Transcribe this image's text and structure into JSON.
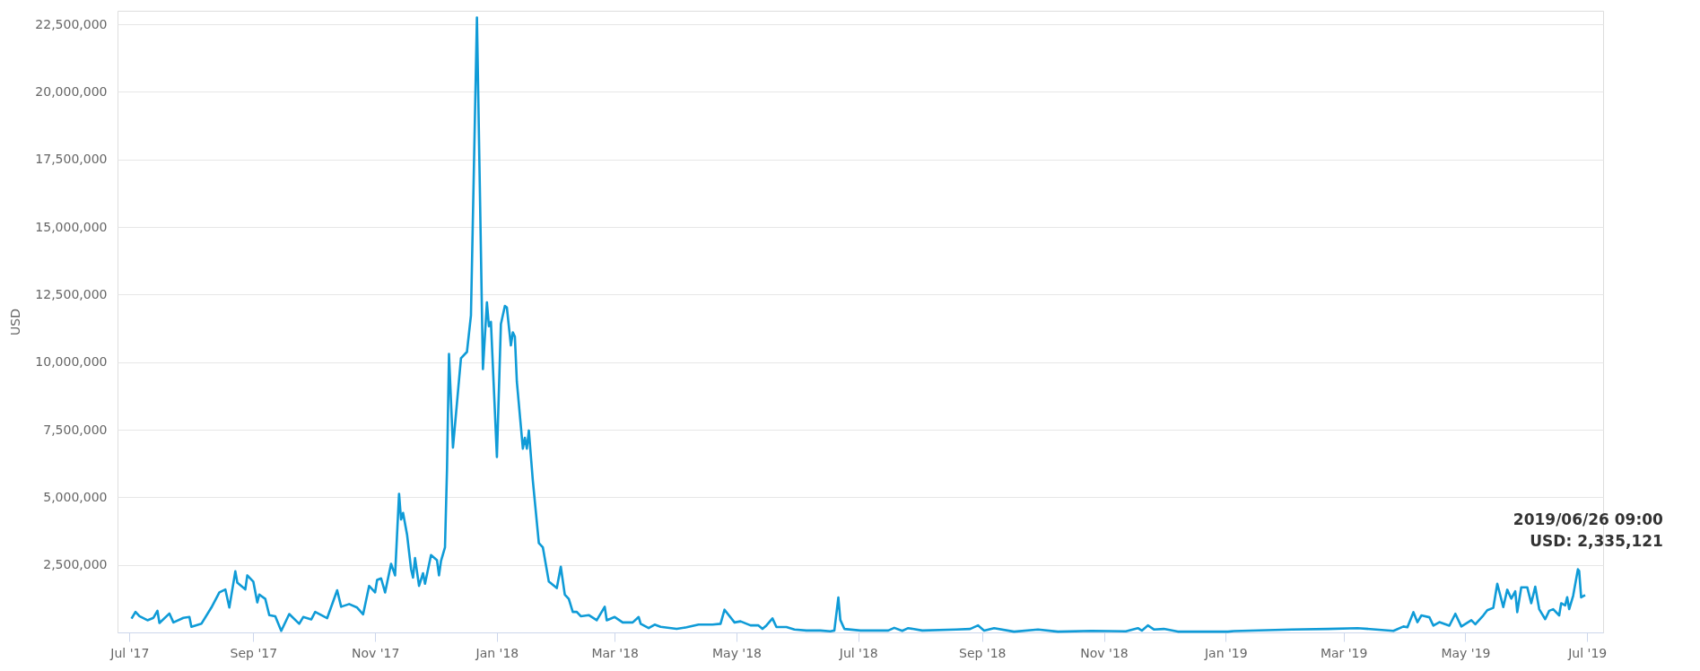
{
  "chart_data": {
    "type": "line",
    "ylabel": "USD",
    "grid": "y",
    "marker": "none",
    "line_style": "solid",
    "xlim": [
      "2017-06-25",
      "2019-07-09"
    ],
    "xticks": [
      {
        "value": "2017-07-01",
        "label": "Jul '17"
      },
      {
        "value": "2017-09-01",
        "label": "Sep '17"
      },
      {
        "value": "2017-11-01",
        "label": "Nov '17"
      },
      {
        "value": "2018-01-01",
        "label": "Jan '18"
      },
      {
        "value": "2018-03-01",
        "label": "Mar '18"
      },
      {
        "value": "2018-05-01",
        "label": "May '18"
      },
      {
        "value": "2018-07-01",
        "label": "Jul '18"
      },
      {
        "value": "2018-09-01",
        "label": "Sep '18"
      },
      {
        "value": "2018-11-01",
        "label": "Nov '18"
      },
      {
        "value": "2019-01-01",
        "label": "Jan '19"
      },
      {
        "value": "2019-03-01",
        "label": "Mar '19"
      },
      {
        "value": "2019-05-01",
        "label": "May '19"
      },
      {
        "value": "2019-07-01",
        "label": "Jul '19"
      }
    ],
    "ylim": [
      0,
      23000000
    ],
    "yticks": [
      {
        "value": 2500000,
        "label": "2,500,000"
      },
      {
        "value": 5000000,
        "label": "5,000,000"
      },
      {
        "value": 7500000,
        "label": "7,500,000"
      },
      {
        "value": 10000000,
        "label": "10,000,000"
      },
      {
        "value": 12500000,
        "label": "12,500,000"
      },
      {
        "value": 15000000,
        "label": "15,000,000"
      },
      {
        "value": 17500000,
        "label": "17,500,000"
      },
      {
        "value": 20000000,
        "label": "20,000,000"
      },
      {
        "value": 22500000,
        "label": "22,500,000"
      }
    ],
    "annotations": [
      {
        "text": "2019/06/26 09:00\nUSD: 2,335,121",
        "x": "2019-06-26T09:00",
        "y": 2335121
      }
    ],
    "series": [
      {
        "color": "#0f9bd7",
        "x": [
          "2017-07-02",
          "2017-07-04",
          "2017-07-06",
          "2017-07-10",
          "2017-07-13",
          "2017-07-15",
          "2017-07-16",
          "2017-07-21",
          "2017-07-23",
          "2017-07-28",
          "2017-07-31",
          "2017-08-01",
          "2017-08-06",
          "2017-08-11",
          "2017-08-15",
          "2017-08-18",
          "2017-08-20",
          "2017-08-23",
          "2017-08-24",
          "2017-08-28",
          "2017-08-29",
          "2017-09-01",
          "2017-09-03",
          "2017-09-04",
          "2017-09-07",
          "2017-09-09",
          "2017-09-12",
          "2017-09-15",
          "2017-09-19",
          "2017-09-24",
          "2017-09-26",
          "2017-09-30",
          "2017-10-02",
          "2017-10-08",
          "2017-10-13",
          "2017-10-15",
          "2017-10-19",
          "2017-10-23",
          "2017-10-26",
          "2017-10-29",
          "2017-11-01",
          "2017-11-02",
          "2017-11-04",
          "2017-11-06",
          "2017-11-09",
          "2017-11-11",
          "2017-11-13",
          "2017-11-14",
          "2017-11-15",
          "2017-11-17",
          "2017-11-19",
          "2017-11-20",
          "2017-11-21",
          "2017-11-23",
          "2017-11-25",
          "2017-11-26",
          "2017-11-29",
          "2017-12-02",
          "2017-12-03",
          "2017-12-04",
          "2017-12-06",
          "2017-12-07",
          "2017-12-08",
          "2017-12-10",
          "2017-12-14",
          "2017-12-17",
          "2017-12-19",
          "2017-12-22",
          "2017-12-25",
          "2017-12-27",
          "2017-12-28",
          "2017-12-29",
          "2018-01-01",
          "2018-01-03",
          "2018-01-05",
          "2018-01-06",
          "2018-01-08",
          "2018-01-09",
          "2018-01-10",
          "2018-01-11",
          "2018-01-14",
          "2018-01-15",
          "2018-01-16",
          "2018-01-17",
          "2018-01-19",
          "2018-01-22",
          "2018-01-24",
          "2018-01-27",
          "2018-01-31",
          "2018-02-02",
          "2018-02-04",
          "2018-02-06",
          "2018-02-08",
          "2018-02-10",
          "2018-02-12",
          "2018-02-16",
          "2018-02-20",
          "2018-02-24",
          "2018-02-25",
          "2018-03-01",
          "2018-03-05",
          "2018-03-10",
          "2018-03-13",
          "2018-03-14",
          "2018-03-18",
          "2018-03-21",
          "2018-03-24",
          "2018-04-01",
          "2018-04-06",
          "2018-04-12",
          "2018-04-19",
          "2018-04-23",
          "2018-04-25",
          "2018-04-30",
          "2018-05-03",
          "2018-05-08",
          "2018-05-12",
          "2018-05-14",
          "2018-05-16",
          "2018-05-19",
          "2018-05-21",
          "2018-05-26",
          "2018-05-30",
          "2018-06-05",
          "2018-06-12",
          "2018-06-17",
          "2018-06-19",
          "2018-06-21",
          "2018-06-22",
          "2018-06-24",
          "2018-07-02",
          "2018-07-16",
          "2018-07-19",
          "2018-07-23",
          "2018-07-26",
          "2018-08-02",
          "2018-08-19",
          "2018-08-26",
          "2018-08-30",
          "2018-09-02",
          "2018-09-07",
          "2018-09-17",
          "2018-09-29",
          "2018-10-09",
          "2018-10-26",
          "2018-11-12",
          "2018-11-18",
          "2018-11-20",
          "2018-11-23",
          "2018-11-26",
          "2018-12-01",
          "2018-12-08",
          "2018-12-20",
          "2019-01-02",
          "2019-01-05",
          "2019-02-03",
          "2019-02-21",
          "2019-03-08",
          "2019-03-26",
          "2019-03-31",
          "2019-04-02",
          "2019-04-05",
          "2019-04-07",
          "2019-04-09",
          "2019-04-13",
          "2019-04-15",
          "2019-04-18",
          "2019-04-23",
          "2019-04-26",
          "2019-04-29",
          "2019-05-04",
          "2019-05-06",
          "2019-05-10",
          "2019-05-12",
          "2019-05-15",
          "2019-05-17",
          "2019-05-20",
          "2019-05-22",
          "2019-05-24",
          "2019-05-26",
          "2019-05-27",
          "2019-05-29",
          "2019-06-01",
          "2019-06-03",
          "2019-06-05",
          "2019-06-07",
          "2019-06-10",
          "2019-06-12",
          "2019-06-14",
          "2019-06-17",
          "2019-06-18",
          "2019-06-20",
          "2019-06-21",
          "2019-06-22",
          "2019-06-24",
          "2019-06-26T09:00",
          "2019-06-27",
          "2019-06-28",
          "2019-06-30"
        ],
        "values": [
          510000,
          760000,
          600000,
          450000,
          540000,
          800000,
          350000,
          700000,
          370000,
          540000,
          570000,
          210000,
          320000,
          920000,
          1480000,
          1590000,
          920000,
          2260000,
          1840000,
          1590000,
          2110000,
          1880000,
          1110000,
          1400000,
          1240000,
          640000,
          600000,
          60000,
          680000,
          320000,
          570000,
          480000,
          760000,
          530000,
          1560000,
          950000,
          1050000,
          920000,
          670000,
          1720000,
          1480000,
          1940000,
          2000000,
          1480000,
          2540000,
          2110000,
          5130000,
          4180000,
          4420000,
          3620000,
          2350000,
          2030000,
          2750000,
          1720000,
          2190000,
          1800000,
          2860000,
          2670000,
          2110000,
          2640000,
          3150000,
          6010000,
          10300000,
          6840000,
          10140000,
          10380000,
          11730000,
          22750000,
          9740000,
          12210000,
          11330000,
          11490000,
          6490000,
          11410000,
          12080000,
          12020000,
          10620000,
          11100000,
          10940000,
          9270000,
          6800000,
          7200000,
          6800000,
          7470000,
          5610000,
          3310000,
          3150000,
          1880000,
          1640000,
          2430000,
          1400000,
          1240000,
          760000,
          760000,
          600000,
          640000,
          450000,
          950000,
          450000,
          570000,
          370000,
          370000,
          570000,
          320000,
          160000,
          290000,
          210000,
          130000,
          190000,
          290000,
          290000,
          320000,
          840000,
          370000,
          410000,
          260000,
          260000,
          130000,
          260000,
          520000,
          200000,
          200000,
          110000,
          70000,
          70000,
          40000,
          70000,
          1290000,
          460000,
          130000,
          70000,
          70000,
          170000,
          60000,
          160000,
          70000,
          110000,
          130000,
          260000,
          70000,
          160000,
          30000,
          110000,
          30000,
          60000,
          40000,
          160000,
          70000,
          260000,
          110000,
          130000,
          30000,
          30000,
          30000,
          50000,
          110000,
          130000,
          160000,
          60000,
          220000,
          190000,
          750000,
          380000,
          630000,
          560000,
          250000,
          380000,
          250000,
          690000,
          220000,
          450000,
          300000,
          630000,
          820000,
          910000,
          1800000,
          940000,
          1580000,
          1250000,
          1520000,
          750000,
          1670000,
          1670000,
          1080000,
          1690000,
          860000,
          490000,
          800000,
          860000,
          630000,
          1080000,
          1000000,
          1300000,
          860000,
          1360000,
          2335121,
          2270000,
          1300000,
          1380000
        ]
      }
    ]
  }
}
